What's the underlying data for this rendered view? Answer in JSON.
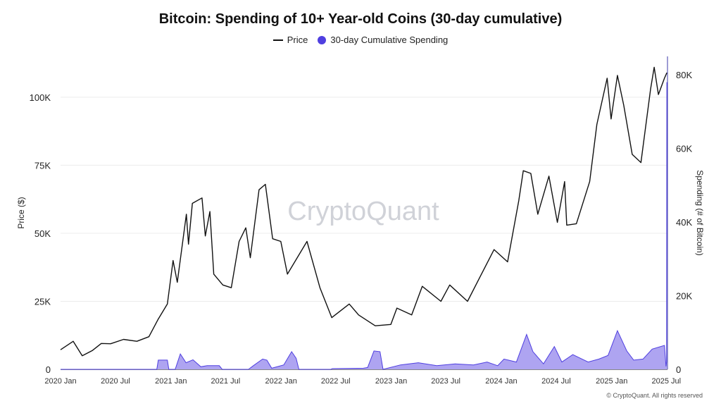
{
  "chart_data": {
    "type": "line",
    "title": "Bitcoin: Spending of 10+ Year-old Coins (30-day cumulative)",
    "legend": [
      "Price",
      "30-day Cumulative Spending"
    ],
    "legend_placement": "top-center",
    "watermark": "CryptoQuant",
    "copyright": "© CryptoQuant. All rights reserved",
    "x_axis": {
      "range": [
        "2020-01-01",
        "2025-07-05"
      ],
      "ticks": [
        {
          "date": "2020-01-01",
          "label": "2020 Jan"
        },
        {
          "date": "2020-07-01",
          "label": "2020 Jul"
        },
        {
          "date": "2021-01-01",
          "label": "2021 Jan"
        },
        {
          "date": "2021-07-01",
          "label": "2021 Jul"
        },
        {
          "date": "2022-01-01",
          "label": "2022 Jan"
        },
        {
          "date": "2022-07-01",
          "label": "2022 Jul"
        },
        {
          "date": "2023-01-01",
          "label": "2023 Jan"
        },
        {
          "date": "2023-07-01",
          "label": "2023 Jul"
        },
        {
          "date": "2024-01-01",
          "label": "2024 Jan"
        },
        {
          "date": "2024-07-01",
          "label": "2024 Jul"
        },
        {
          "date": "2025-01-01",
          "label": "2025 Jan"
        },
        {
          "date": "2025-07-01",
          "label": "2025 Jul"
        }
      ]
    },
    "y_left": {
      "label": "Price ($)",
      "range": [
        0,
        115000
      ],
      "ticks": [
        {
          "value": 0,
          "label": "0"
        },
        {
          "value": 25000,
          "label": "25K"
        },
        {
          "value": 50000,
          "label": "50K"
        },
        {
          "value": 75000,
          "label": "75K"
        },
        {
          "value": 100000,
          "label": "100K"
        }
      ]
    },
    "y_right": {
      "label": "Spending (# of Bitcoin)",
      "range": [
        0,
        85000
      ],
      "ticks": [
        {
          "value": 0,
          "label": "0"
        },
        {
          "value": 20000,
          "label": "20K"
        },
        {
          "value": 40000,
          "label": "40K"
        },
        {
          "value": 60000,
          "label": "60K"
        },
        {
          "value": 80000,
          "label": "80K"
        }
      ]
    },
    "grid": true,
    "series": [
      {
        "name": "Price",
        "color": "#111111",
        "axis": "left",
        "points": [
          [
            "2020-01-01",
            7200
          ],
          [
            "2020-02-12",
            10300
          ],
          [
            "2020-03-13",
            5000
          ],
          [
            "2020-04-15",
            6900
          ],
          [
            "2020-05-15",
            9500
          ],
          [
            "2020-06-15",
            9400
          ],
          [
            "2020-07-28",
            11000
          ],
          [
            "2020-09-10",
            10300
          ],
          [
            "2020-10-20",
            12000
          ],
          [
            "2020-11-20",
            18500
          ],
          [
            "2020-12-20",
            24000
          ],
          [
            "2021-01-08",
            40000
          ],
          [
            "2021-01-22",
            32000
          ],
          [
            "2021-02-21",
            57000
          ],
          [
            "2021-02-28",
            46000
          ],
          [
            "2021-03-13",
            61000
          ],
          [
            "2021-04-14",
            63000
          ],
          [
            "2021-04-25",
            49000
          ],
          [
            "2021-05-10",
            58000
          ],
          [
            "2021-05-23",
            35000
          ],
          [
            "2021-06-22",
            31000
          ],
          [
            "2021-07-20",
            30000
          ],
          [
            "2021-08-15",
            47000
          ],
          [
            "2021-09-06",
            52000
          ],
          [
            "2021-09-21",
            41000
          ],
          [
            "2021-10-20",
            66000
          ],
          [
            "2021-11-10",
            68000
          ],
          [
            "2021-12-04",
            48000
          ],
          [
            "2021-12-31",
            47000
          ],
          [
            "2022-01-22",
            35000
          ],
          [
            "2022-03-28",
            47000
          ],
          [
            "2022-05-10",
            30000
          ],
          [
            "2022-06-18",
            19000
          ],
          [
            "2022-08-15",
            24000
          ],
          [
            "2022-09-15",
            20000
          ],
          [
            "2022-11-09",
            16000
          ],
          [
            "2022-12-31",
            16500
          ],
          [
            "2023-01-20",
            22500
          ],
          [
            "2023-03-10",
            20000
          ],
          [
            "2023-04-14",
            30500
          ],
          [
            "2023-06-15",
            25000
          ],
          [
            "2023-07-14",
            31000
          ],
          [
            "2023-09-11",
            25000
          ],
          [
            "2023-10-25",
            34500
          ],
          [
            "2023-12-08",
            44000
          ],
          [
            "2024-01-22",
            39500
          ],
          [
            "2024-02-28",
            62000
          ],
          [
            "2024-03-14",
            73000
          ],
          [
            "2024-04-08",
            72000
          ],
          [
            "2024-05-01",
            57000
          ],
          [
            "2024-06-07",
            71000
          ],
          [
            "2024-07-05",
            54000
          ],
          [
            "2024-07-29",
            69000
          ],
          [
            "2024-08-05",
            53000
          ],
          [
            "2024-09-06",
            53500
          ],
          [
            "2024-10-20",
            69000
          ],
          [
            "2024-11-13",
            90000
          ],
          [
            "2024-12-17",
            107000
          ],
          [
            "2024-12-30",
            92000
          ],
          [
            "2025-01-20",
            108000
          ],
          [
            "2025-02-10",
            97000
          ],
          [
            "2025-03-10",
            79000
          ],
          [
            "2025-04-08",
            76000
          ],
          [
            "2025-05-10",
            103000
          ],
          [
            "2025-05-22",
            111000
          ],
          [
            "2025-06-05",
            101000
          ],
          [
            "2025-06-25",
            107000
          ],
          [
            "2025-07-03",
            109000
          ]
        ]
      },
      {
        "name": "30-day Cumulative Spending",
        "color": "#4f3fe0",
        "fill": "#a59af0",
        "axis": "right",
        "points": [
          [
            "2020-01-01",
            0
          ],
          [
            "2020-11-15",
            0
          ],
          [
            "2020-11-20",
            2500
          ],
          [
            "2020-12-20",
            2500
          ],
          [
            "2020-12-25",
            0
          ],
          [
            "2021-01-15",
            0
          ],
          [
            "2021-02-01",
            4200
          ],
          [
            "2021-02-20",
            1800
          ],
          [
            "2021-03-15",
            2600
          ],
          [
            "2021-04-10",
            700
          ],
          [
            "2021-05-01",
            1000
          ],
          [
            "2021-06-10",
            1000
          ],
          [
            "2021-06-20",
            0
          ],
          [
            "2021-09-15",
            0
          ],
          [
            "2021-10-01",
            1000
          ],
          [
            "2021-11-01",
            2800
          ],
          [
            "2021-11-15",
            2500
          ],
          [
            "2021-12-01",
            300
          ],
          [
            "2022-01-10",
            1200
          ],
          [
            "2022-02-05",
            4800
          ],
          [
            "2022-02-20",
            3000
          ],
          [
            "2022-03-01",
            0
          ],
          [
            "2022-06-15",
            0
          ],
          [
            "2022-06-20",
            200
          ],
          [
            "2022-10-01",
            300
          ],
          [
            "2022-10-15",
            500
          ],
          [
            "2022-11-05",
            5000
          ],
          [
            "2022-11-25",
            4800
          ],
          [
            "2022-12-05",
            0
          ],
          [
            "2023-02-01",
            1200
          ],
          [
            "2023-04-01",
            1800
          ],
          [
            "2023-06-01",
            1000
          ],
          [
            "2023-08-01",
            1500
          ],
          [
            "2023-10-01",
            1200
          ],
          [
            "2023-11-15",
            2000
          ],
          [
            "2023-12-20",
            1000
          ],
          [
            "2024-01-10",
            2800
          ],
          [
            "2024-02-20",
            2000
          ],
          [
            "2024-03-25",
            9500
          ],
          [
            "2024-04-15",
            4800
          ],
          [
            "2024-05-20",
            1500
          ],
          [
            "2024-06-25",
            6200
          ],
          [
            "2024-07-20",
            2000
          ],
          [
            "2024-08-25",
            4000
          ],
          [
            "2024-10-15",
            2000
          ],
          [
            "2024-11-20",
            2800
          ],
          [
            "2024-12-20",
            3800
          ],
          [
            "2025-01-20",
            10500
          ],
          [
            "2025-02-20",
            5000
          ],
          [
            "2025-03-15",
            2500
          ],
          [
            "2025-04-15",
            2800
          ],
          [
            "2025-05-15",
            5500
          ],
          [
            "2025-06-25",
            6500
          ],
          [
            "2025-06-30",
            800
          ],
          [
            "2025-07-02",
            2000
          ],
          [
            "2025-07-03",
            78000
          ]
        ]
      }
    ]
  }
}
